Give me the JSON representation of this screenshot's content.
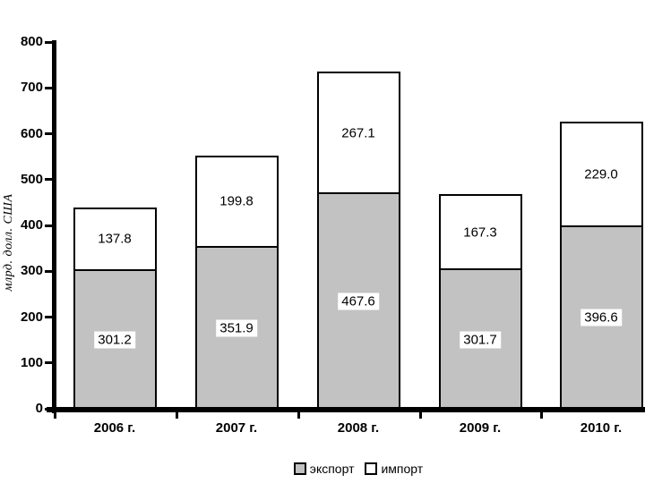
{
  "chart_data": {
    "type": "bar",
    "stacked": true,
    "categories": [
      "2006 г.",
      "2007 г.",
      "2008 г.",
      "2009 г.",
      "2010 г."
    ],
    "series": [
      {
        "name": "экспорт",
        "color": "#c2c2c2",
        "values": [
          301.2,
          351.9,
          467.6,
          301.7,
          396.6
        ],
        "labels": [
          "301.2",
          "351.9",
          "467.6",
          "301.7",
          "396.6"
        ]
      },
      {
        "name": "импорт",
        "color": "#ffffff",
        "values": [
          137.8,
          199.8,
          267.1,
          167.3,
          229.0
        ],
        "labels": [
          "137.8",
          "199.8",
          "267.1",
          "167.3",
          "229.0"
        ]
      }
    ],
    "title": "",
    "xlabel": "",
    "ylabel": "млрд. долл. США",
    "ylim": [
      0,
      800
    ],
    "ytick_step": 100,
    "yticks": [
      "0",
      "100",
      "200",
      "300",
      "400",
      "500",
      "600",
      "700",
      "800"
    ],
    "grid": false,
    "legend_position": "bottom",
    "bar_border_color": "#000000",
    "axis_color": "#000000"
  }
}
